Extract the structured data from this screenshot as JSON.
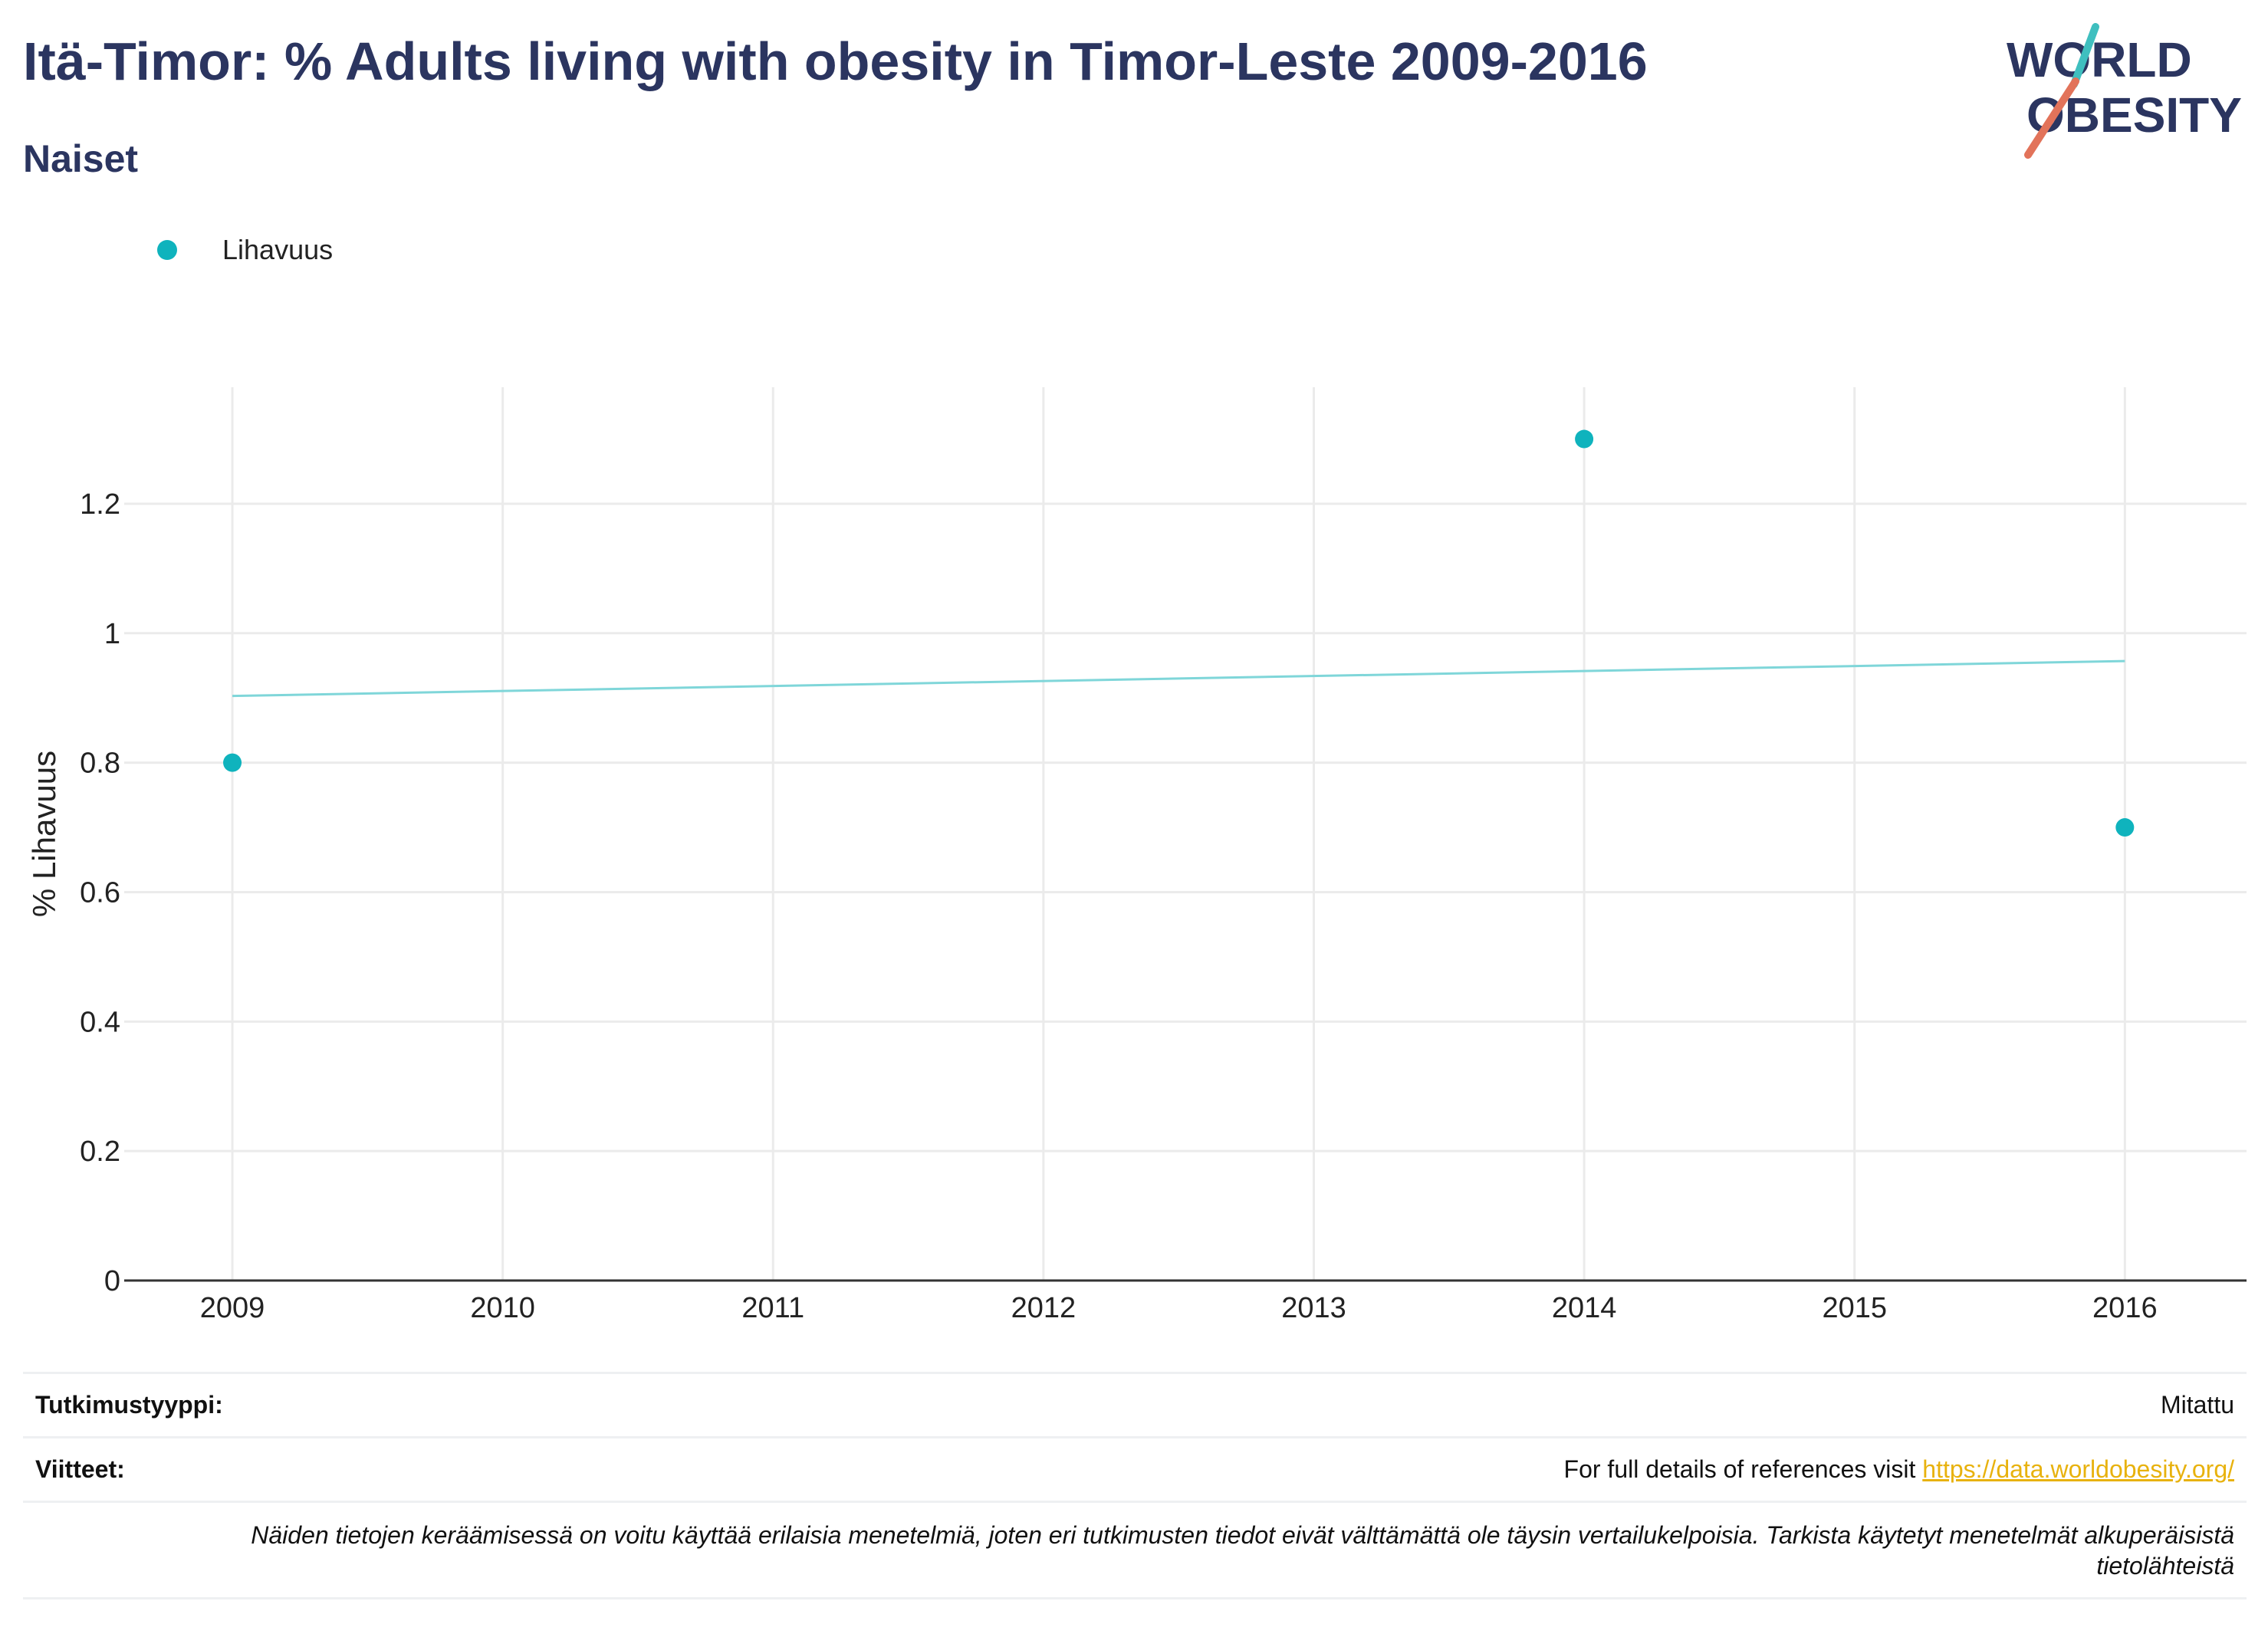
{
  "header": {
    "title": "Itä-Timor: % Adults living with obesity in Timor-Leste 2009-2016",
    "subtitle": "Naiset"
  },
  "logo": {
    "line1": "WORLD",
    "line2": "OBESITY",
    "slash_colors": [
      "#3fbfbf",
      "#e2735a"
    ],
    "text_color": "#2b3560"
  },
  "colors": {
    "title": "#2b3560",
    "series": "#0fb3bd",
    "trend": "#7fd6d9",
    "grid": "#ebebeb",
    "link": "#e8b20e"
  },
  "chart_data": {
    "type": "scatter",
    "x_ticks": [
      2009,
      2010,
      2011,
      2012,
      2013,
      2014,
      2015,
      2016
    ],
    "xlim": [
      2008.6,
      2016.45
    ],
    "y_ticks": [
      0,
      0.2,
      0.4,
      0.6,
      0.8,
      1,
      1.2
    ],
    "y_tick_labels": [
      "0",
      "0.2",
      "0.4",
      "0.6",
      "0.8",
      "1",
      "1.2"
    ],
    "ylim": [
      0,
      1.38
    ],
    "ylabel": "% Lihavuus",
    "xlabel": "",
    "grid": true,
    "legend_position": "top-left",
    "series": [
      {
        "name": "Lihavuus",
        "points": [
          {
            "x": 2009,
            "y": 0.8
          },
          {
            "x": 2014,
            "y": 1.3
          },
          {
            "x": 2016,
            "y": 0.7
          }
        ]
      }
    ],
    "trendline": {
      "x": [
        2009,
        2016
      ],
      "y": [
        0.903,
        0.957
      ]
    }
  },
  "footer": {
    "study_type_label": "Tutkimustyyppi:",
    "study_type_value": "Mitattu",
    "references_label": "Viitteet:",
    "references_text": "For full details of references visit ",
    "references_link": "https://data.worldobesity.org/",
    "note": "Näiden tietojen keräämisessä on voitu käyttää erilaisia menetelmiä, joten eri tutkimusten tiedot eivät välttämättä ole täysin vertailukelpoisia. Tarkista käytetyt menetelmät alkuperäisistä tietolähteistä"
  }
}
